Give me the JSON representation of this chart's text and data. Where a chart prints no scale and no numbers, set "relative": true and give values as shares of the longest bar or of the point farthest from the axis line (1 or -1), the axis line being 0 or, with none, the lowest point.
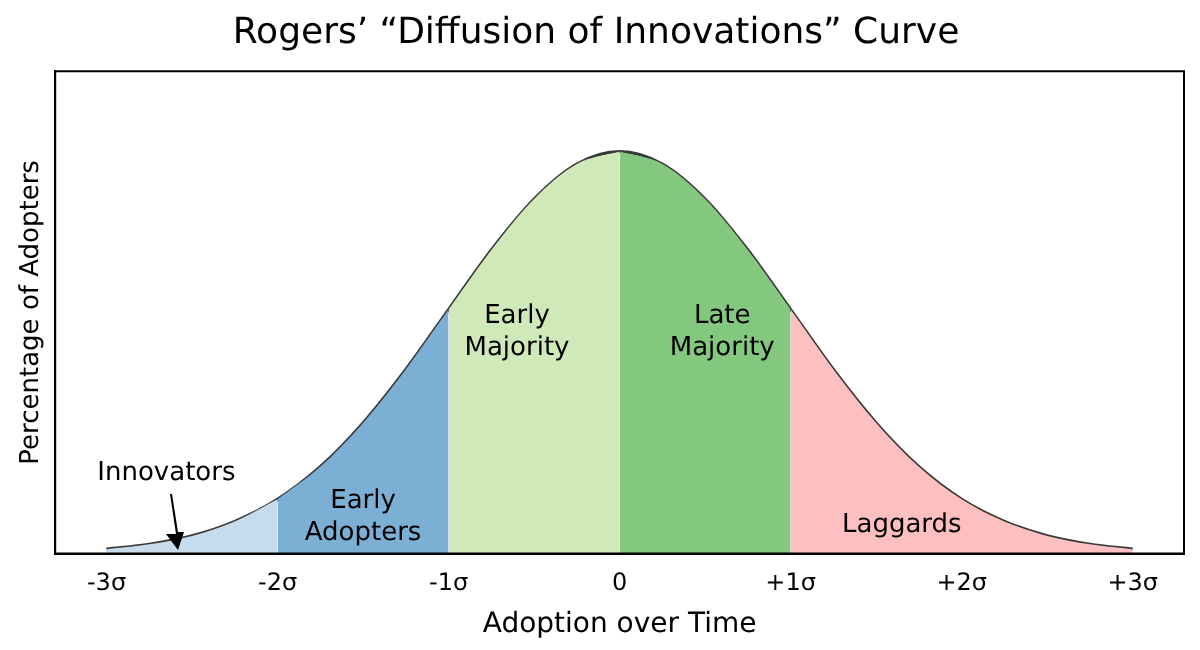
{
  "chart_data": {
    "type": "area",
    "title": "Rogers’ “Diffusion of Innovations” Curve",
    "xlabel": "Adoption over Time",
    "ylabel": "Percentage of Adopters",
    "relative": true,
    "tick_labels": "x",
    "grid": false,
    "legend": false,
    "xlim": [
      -3.3,
      3.3
    ],
    "xticks": [
      {
        "value": -3,
        "label": "-3σ"
      },
      {
        "value": -2,
        "label": "-2σ"
      },
      {
        "value": -1,
        "label": "-1σ"
      },
      0,
      {
        "value": 1,
        "label": "+1σ"
      },
      {
        "value": 2,
        "label": "+2σ"
      },
      {
        "value": 3,
        "label": "+3σ"
      }
    ],
    "series": [
      {
        "name": "Innovators",
        "color": "#c6dcec",
        "x": [
          -3,
          -2.75,
          -2.5,
          -2.25,
          -2
        ],
        "values": [
          0.011,
          0.023,
          0.044,
          0.08,
          0.135
        ]
      },
      {
        "name": "Early Adopters",
        "color": "#7bafd4",
        "x": [
          -2,
          -1.75,
          -1.5,
          -1.25,
          -1
        ],
        "values": [
          0.135,
          0.216,
          0.325,
          0.458,
          0.607
        ]
      },
      {
        "name": "Early Majority",
        "color": "#d0e9b9",
        "x": [
          -1,
          -0.75,
          -0.5,
          -0.25,
          0
        ],
        "values": [
          0.607,
          0.755,
          0.882,
          0.969,
          1
        ]
      },
      {
        "name": "Late Majority",
        "color": "#84c77e",
        "x": [
          0,
          0.25,
          0.5,
          0.75,
          1
        ],
        "values": [
          1,
          0.969,
          0.882,
          0.755,
          0.607
        ]
      },
      {
        "name": "Laggards",
        "color": "#fdbfbf",
        "x": [
          1,
          1.25,
          1.5,
          1.75,
          2,
          2.25,
          2.5,
          2.75,
          3
        ],
        "values": [
          0.607,
          0.458,
          0.325,
          0.216,
          0.135,
          0.08,
          0.044,
          0.023,
          0.011
        ]
      },
      {
        "type": "line",
        "color": "#3a3a3a",
        "x": [
          -3,
          -2.75,
          -2.5,
          -2.25,
          -2,
          -1.75,
          -1.5,
          -1.25,
          -1,
          -0.75,
          -0.5,
          -0.25,
          0,
          0.25,
          0.5,
          0.75,
          1,
          1.25,
          1.5,
          1.75,
          2,
          2.25,
          2.5,
          2.75,
          3
        ],
        "values": [
          0.011,
          0.023,
          0.044,
          0.08,
          0.135,
          0.216,
          0.325,
          0.458,
          0.607,
          0.755,
          0.882,
          0.969,
          1,
          0.969,
          0.882,
          0.755,
          0.607,
          0.458,
          0.325,
          0.216,
          0.135,
          0.08,
          0.044,
          0.023,
          0.011
        ]
      }
    ]
  }
}
